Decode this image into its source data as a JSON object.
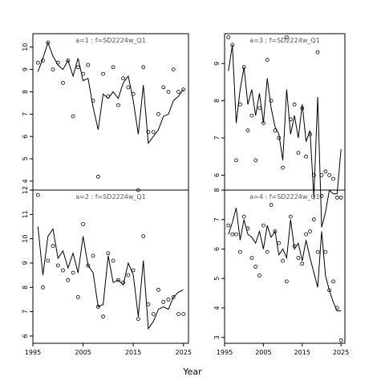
{
  "figure": {
    "xlabel": "Year"
  },
  "chart_data": [
    {
      "type": "scatter",
      "title": "a=1 : f=SD2224w_Q1",
      "xlim": [
        1995,
        2026
      ],
      "ylim": [
        3.6,
        10.6
      ],
      "xticks": [],
      "yticks": [
        4,
        5,
        6,
        7,
        8,
        9,
        10
      ],
      "series": [
        {
          "kind": "points",
          "x": [
            1996,
            1997,
            1998,
            1999,
            2000,
            2001,
            2002,
            2003,
            2004,
            2005,
            2006,
            2007,
            2008,
            2009,
            2010,
            2011,
            2012,
            2013,
            2014,
            2015,
            2016,
            2017,
            2018,
            2019,
            2020,
            2021,
            2022,
            2023,
            2024,
            2025
          ],
          "y": [
            9.3,
            9.4,
            10.2,
            9.0,
            9.3,
            8.4,
            9.4,
            6.9,
            9.1,
            8.8,
            9.2,
            7.6,
            4.2,
            8.8,
            7.8,
            9.1,
            7.4,
            8.6,
            8.2,
            7.9,
            3.6,
            9.1,
            6.2,
            6.2,
            7.0,
            8.2,
            8.0,
            9.0,
            8.0,
            8.1
          ]
        },
        {
          "kind": "line",
          "x": [
            1996,
            1997,
            1998,
            1999,
            2000,
            2001,
            2002,
            2003,
            2004,
            2005,
            2006,
            2007,
            2008,
            2009,
            2010,
            2011,
            2012,
            2013,
            2014,
            2015,
            2016,
            2017,
            2018,
            2019,
            2020,
            2021,
            2022,
            2023,
            2024,
            2025
          ],
          "y": [
            8.9,
            9.5,
            10.2,
            9.6,
            9.2,
            9.0,
            9.4,
            8.7,
            9.5,
            8.5,
            8.6,
            7.3,
            6.3,
            7.9,
            7.7,
            8.0,
            7.7,
            8.4,
            8.7,
            7.6,
            6.1,
            8.3,
            5.7,
            6.0,
            6.3,
            6.9,
            7.0,
            7.6,
            7.8,
            8.1
          ]
        }
      ]
    },
    {
      "type": "scatter",
      "title": "a=3 : f=SD2224w_Q1",
      "xlim": [
        1995,
        2026
      ],
      "ylim": [
        5.6,
        9.8
      ],
      "xticks": [],
      "yticks": [
        6,
        7,
        8,
        9
      ],
      "series": [
        {
          "kind": "points",
          "x": [
            1996,
            1997,
            1998,
            1999,
            2000,
            2001,
            2002,
            2003,
            2004,
            2005,
            2006,
            2007,
            2008,
            2009,
            2010,
            2011,
            2012,
            2013,
            2014,
            2015,
            2016,
            2017,
            2018,
            2019,
            2020,
            2021,
            2022,
            2023,
            2024,
            2025
          ],
          "y": [
            9.7,
            9.5,
            6.4,
            7.9,
            8.9,
            7.2,
            7.6,
            6.4,
            7.8,
            7.4,
            9.1,
            8.0,
            7.2,
            7.0,
            6.2,
            9.7,
            7.5,
            7.9,
            6.6,
            7.8,
            6.5,
            7.1,
            6.0,
            9.3,
            6.0,
            6.1,
            6.0,
            5.9,
            5.4,
            5.4
          ]
        },
        {
          "kind": "line",
          "x": [
            1996,
            1997,
            1998,
            1999,
            2000,
            2001,
            2002,
            2003,
            2004,
            2005,
            2006,
            2007,
            2008,
            2009,
            2010,
            2011,
            2012,
            2013,
            2014,
            2015,
            2016,
            2017,
            2018,
            2019,
            2020,
            2021,
            2022,
            2023,
            2024,
            2025
          ],
          "y": [
            8.8,
            9.5,
            7.4,
            8.3,
            8.9,
            7.9,
            8.3,
            7.6,
            8.2,
            7.4,
            8.6,
            7.8,
            7.3,
            7.1,
            6.4,
            8.3,
            7.1,
            7.6,
            7.0,
            7.9,
            6.9,
            7.2,
            5.4,
            8.1,
            4.6,
            5.0,
            5.6,
            5.5,
            5.5,
            6.7
          ]
        }
      ]
    },
    {
      "type": "scatter",
      "title": "a=2 : f=SD2224w_Q1",
      "xlim": [
        1995,
        2026
      ],
      "ylim": [
        5.7,
        12.0
      ],
      "xticks": [
        1995,
        2005,
        2015,
        2025
      ],
      "yticks": [
        6,
        7,
        8,
        9,
        10,
        11,
        12
      ],
      "series": [
        {
          "kind": "points",
          "x": [
            1996,
            1997,
            1998,
            1999,
            2000,
            2001,
            2002,
            2003,
            2004,
            2005,
            2006,
            2007,
            2008,
            2009,
            2010,
            2011,
            2012,
            2013,
            2014,
            2015,
            2016,
            2017,
            2018,
            2019,
            2020,
            2021,
            2022,
            2023,
            2024,
            2025
          ],
          "y": [
            11.8,
            8.0,
            9.1,
            9.7,
            8.9,
            8.7,
            8.3,
            8.6,
            7.6,
            10.6,
            8.9,
            9.3,
            7.2,
            6.8,
            9.4,
            9.1,
            8.3,
            8.2,
            8.5,
            8.7,
            6.7,
            10.1,
            7.3,
            6.9,
            7.9,
            7.4,
            7.5,
            7.6,
            6.9,
            6.9
          ]
        },
        {
          "kind": "line",
          "x": [
            1996,
            1997,
            1998,
            1999,
            2000,
            2001,
            2002,
            2003,
            2004,
            2005,
            2006,
            2007,
            2008,
            2009,
            2010,
            2011,
            2012,
            2013,
            2014,
            2015,
            2016,
            2017,
            2018,
            2019,
            2020,
            2021,
            2022,
            2023,
            2024,
            2025
          ],
          "y": [
            10.5,
            8.5,
            10.1,
            10.4,
            9.2,
            9.5,
            8.8,
            9.4,
            8.6,
            10.1,
            8.9,
            8.6,
            7.2,
            7.3,
            9.3,
            8.2,
            8.3,
            8.1,
            9.0,
            8.5,
            6.8,
            9.1,
            6.3,
            6.6,
            7.1,
            7.2,
            7.1,
            7.6,
            7.8,
            7.9
          ]
        }
      ]
    },
    {
      "type": "scatter",
      "title": "a=4 : f=SD2224w_Q1",
      "xlim": [
        1995,
        2026
      ],
      "ylim": [
        2.8,
        8.0
      ],
      "xticks": [
        1995,
        2005,
        2015,
        2025
      ],
      "yticks": [
        3,
        4,
        5,
        6,
        7,
        8
      ],
      "series": [
        {
          "kind": "points",
          "x": [
            1996,
            1997,
            1998,
            1999,
            2000,
            2001,
            2002,
            2003,
            2004,
            2005,
            2006,
            2007,
            2008,
            2009,
            2010,
            2011,
            2012,
            2013,
            2014,
            2015,
            2016,
            2017,
            2018,
            2019,
            2020,
            2021,
            2022,
            2023,
            2024,
            2025
          ],
          "y": [
            6.8,
            6.5,
            6.5,
            5.9,
            7.1,
            6.7,
            5.7,
            5.4,
            5.1,
            6.8,
            5.9,
            7.5,
            6.6,
            6.2,
            5.6,
            4.9,
            7.1,
            6.1,
            5.7,
            5.5,
            6.5,
            6.6,
            7.0,
            5.9,
            7.8,
            5.9,
            4.6,
            4.9,
            4.0,
            2.9
          ]
        },
        {
          "kind": "line",
          "x": [
            1996,
            1997,
            1998,
            1999,
            2000,
            2001,
            2002,
            2003,
            2004,
            2005,
            2006,
            2007,
            2008,
            2009,
            2010,
            2011,
            2012,
            2013,
            2014,
            2015,
            2016,
            2017,
            2018,
            2019,
            2020,
            2021,
            2022,
            2023,
            2024,
            2025
          ],
          "y": [
            6.5,
            6.9,
            7.4,
            6.3,
            7.0,
            6.5,
            6.4,
            6.2,
            6.6,
            6.0,
            6.8,
            6.4,
            6.6,
            5.8,
            6.0,
            5.7,
            7.0,
            6.0,
            6.2,
            5.6,
            6.3,
            5.7,
            5.2,
            4.7,
            6.6,
            5.1,
            4.6,
            4.2,
            3.9,
            3.9
          ]
        }
      ]
    }
  ]
}
